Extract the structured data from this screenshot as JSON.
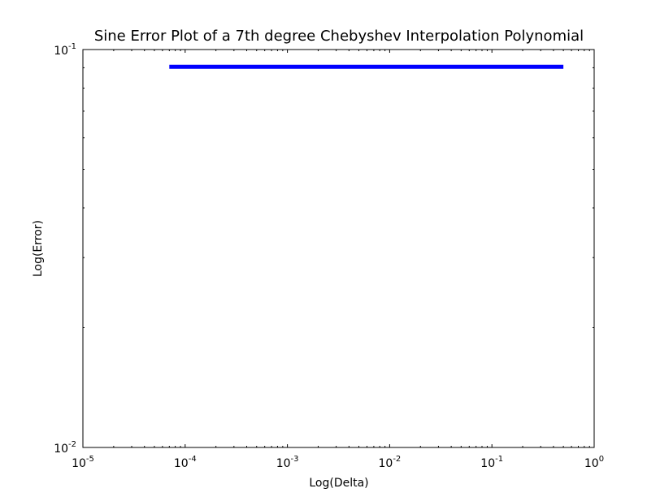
{
  "chart_data": {
    "type": "line",
    "title": "Sine Error Plot of a 7th degree Chebyshev Interpolation Polynomial",
    "xlabel": "Log(Delta)",
    "ylabel": "Log(Error)",
    "x_scale": "log",
    "y_scale": "log",
    "xlim": [
      1e-05,
      1
    ],
    "ylim": [
      0.01,
      0.1
    ],
    "grid": false,
    "x_ticks": [
      {
        "value": 1e-05,
        "base": "10",
        "exp": "-5"
      },
      {
        "value": 0.0001,
        "base": "10",
        "exp": "-4"
      },
      {
        "value": 0.001,
        "base": "10",
        "exp": "-3"
      },
      {
        "value": 0.01,
        "base": "10",
        "exp": "-2"
      },
      {
        "value": 0.1,
        "base": "10",
        "exp": "-1"
      },
      {
        "value": 1,
        "base": "10",
        "exp": "0"
      }
    ],
    "y_ticks": [
      {
        "value": 0.01,
        "base": "10",
        "exp": "-2"
      },
      {
        "value": 0.1,
        "base": "10",
        "exp": "-1"
      }
    ],
    "series": [
      {
        "color": "#0000ff",
        "x": [
          7e-05,
          0.5
        ],
        "y": [
          0.0905,
          0.0905
        ]
      }
    ]
  }
}
